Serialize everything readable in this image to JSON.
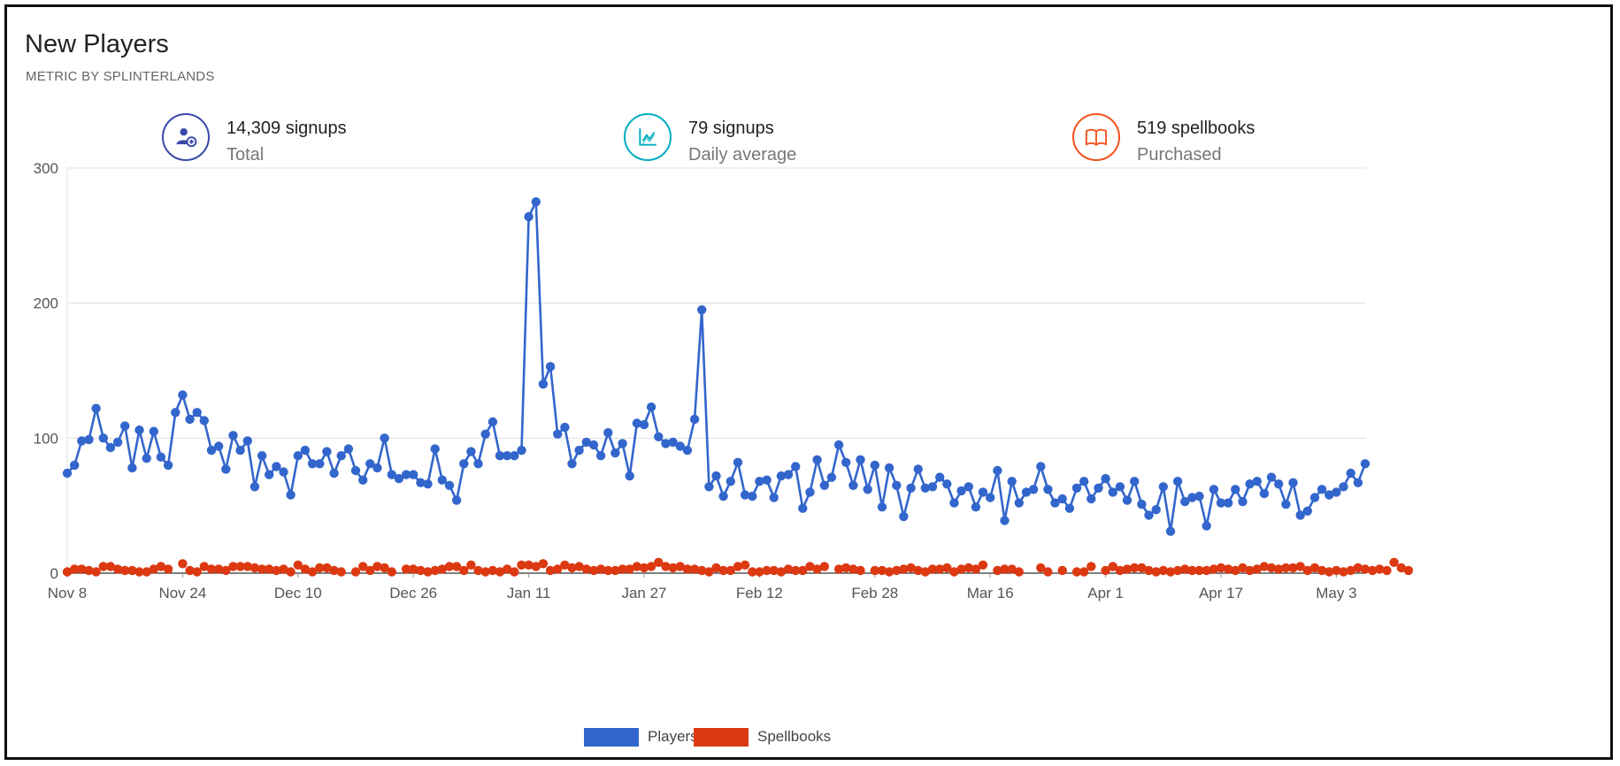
{
  "header": {
    "title": "New Players",
    "subtitle": "METRIC BY SPLINTERLANDS"
  },
  "metrics": [
    {
      "value": "14,309 signups",
      "label": "Total",
      "icon": "user-add-icon",
      "color": "#3949ab"
    },
    {
      "value": "79 signups",
      "label": "Daily average",
      "icon": "line-chart-icon",
      "color": "#00acc1"
    },
    {
      "value": "519 spellbooks",
      "label": "Purchased",
      "icon": "book-icon",
      "color": "#f4511e"
    }
  ],
  "chart_data": {
    "type": "line",
    "x_tick_labels": [
      "Nov 8",
      "Nov 24",
      "Dec 10",
      "Dec 26",
      "Jan 11",
      "Jan 27",
      "Feb 12",
      "Feb 28",
      "Mar 16",
      "Apr 1",
      "Apr 17",
      "May 3"
    ],
    "y_ticks": [
      0,
      100,
      200,
      300
    ],
    "ylim": [
      0,
      300
    ],
    "grid": true,
    "legend_position": "bottom",
    "series": [
      {
        "name": "Players",
        "color": "#3366cc",
        "values": [
          74,
          80,
          98,
          99,
          122,
          100,
          93,
          97,
          109,
          78,
          106,
          85,
          105,
          86,
          80,
          119,
          132,
          114,
          119,
          113,
          91,
          94,
          77,
          102,
          91,
          98,
          64,
          87,
          73,
          79,
          75,
          58,
          87,
          91,
          81,
          81,
          90,
          74,
          87,
          92,
          76,
          69,
          81,
          78,
          100,
          73,
          70,
          73,
          73,
          67,
          66,
          92,
          69,
          65,
          54,
          81,
          90,
          81,
          103,
          112,
          87,
          87,
          87,
          91,
          264,
          275,
          140,
          153,
          103,
          108,
          81,
          91,
          97,
          95,
          87,
          104,
          89,
          96,
          72,
          111,
          110,
          123,
          101,
          96,
          97,
          94,
          91,
          114,
          195,
          64,
          72,
          57,
          68,
          82,
          58,
          57,
          68,
          69,
          56,
          72,
          73,
          79,
          48,
          60,
          84,
          65,
          71,
          95,
          82,
          65,
          84,
          62,
          80,
          49,
          78,
          65,
          42,
          63,
          77,
          63,
          64,
          71,
          66,
          52,
          61,
          64,
          49,
          60,
          56,
          76,
          39,
          68,
          52,
          60,
          62,
          79,
          62,
          52,
          55,
          48,
          63,
          68,
          55,
          63,
          70,
          60,
          64,
          54,
          68,
          51,
          43,
          47,
          64,
          31,
          68,
          53,
          56,
          57,
          35,
          62,
          52,
          52,
          62,
          53,
          66,
          68,
          59,
          71,
          66,
          51,
          67,
          43,
          46,
          56,
          62,
          58,
          60,
          64,
          74,
          67,
          81
        ]
      },
      {
        "name": "Spellbooks",
        "color": "#dc3912",
        "values": [
          1,
          3,
          3,
          2,
          1,
          5,
          5,
          3,
          2,
          2,
          1,
          1,
          3,
          5,
          3,
          null,
          7,
          2,
          1,
          5,
          3,
          3,
          2,
          5,
          5,
          5,
          4,
          3,
          3,
          2,
          3,
          1,
          6,
          3,
          1,
          4,
          4,
          2,
          1,
          null,
          1,
          5,
          2,
          5,
          4,
          1,
          null,
          3,
          3,
          2,
          1,
          2,
          3,
          5,
          5,
          2,
          6,
          2,
          1,
          2,
          1,
          3,
          1,
          6,
          6,
          5,
          7,
          2,
          3,
          6,
          4,
          5,
          3,
          2,
          3,
          2,
          2,
          3,
          3,
          5,
          4,
          5,
          8,
          5,
          4,
          5,
          3,
          3,
          2,
          1,
          4,
          2,
          2,
          5,
          6,
          1,
          1,
          2,
          2,
          1,
          3,
          2,
          2,
          5,
          3,
          5,
          null,
          3,
          4,
          3,
          2,
          null,
          2,
          2,
          1,
          2,
          3,
          4,
          2,
          1,
          3,
          3,
          4,
          1,
          3,
          4,
          3,
          6,
          null,
          2,
          3,
          3,
          1,
          null,
          null,
          4,
          1,
          null,
          2,
          null,
          1,
          1,
          5,
          null,
          2,
          5,
          2,
          3,
          4,
          4,
          2,
          1,
          2,
          1,
          2,
          3,
          2,
          2,
          2,
          3,
          4,
          3,
          2,
          4,
          2,
          3,
          5,
          4,
          3,
          4,
          4,
          5,
          2,
          4,
          2,
          1,
          2,
          1,
          2,
          4,
          3,
          2,
          3,
          2,
          8,
          4,
          2
        ]
      }
    ]
  }
}
